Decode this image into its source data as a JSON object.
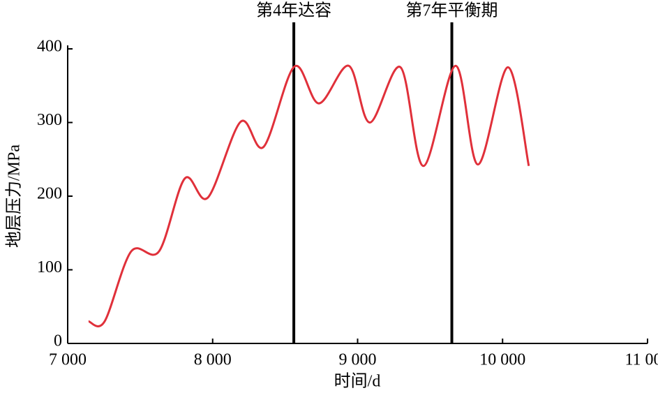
{
  "chart_data": {
    "type": "line",
    "x_label": "时间/d",
    "y_label": "地层压力/MPa",
    "xlim": [
      7000,
      11000
    ],
    "xticks": [
      {
        "value": 7000,
        "label": "7 000"
      },
      {
        "value": 8000,
        "label": "8 000"
      },
      {
        "value": 9000,
        "label": "9 000"
      },
      {
        "value": 10000,
        "label": "10 000"
      },
      {
        "value": 11000,
        "label": "11 000"
      }
    ],
    "ylim": [
      0,
      400
    ],
    "yticks": [
      0,
      100,
      200,
      300,
      400
    ],
    "grid": false,
    "series": [
      {
        "name": null,
        "color": "#e0303a",
        "x": [
          7144,
          7255,
          7438,
          7630,
          7808,
          7967,
          8193,
          8352,
          8564,
          8733,
          8939,
          9084,
          9296,
          9454,
          9676,
          9830,
          10037,
          10181
        ],
        "values": [
          30,
          30,
          125,
          125,
          224,
          198,
          301,
          267,
          376,
          326,
          377,
          300,
          375,
          241,
          377,
          243,
          375,
          241
        ]
      }
    ],
    "annotations": [
      {
        "x": 8560,
        "label": "第4年达容"
      },
      {
        "x": 9650,
        "label": "第7年平衡期"
      }
    ]
  }
}
